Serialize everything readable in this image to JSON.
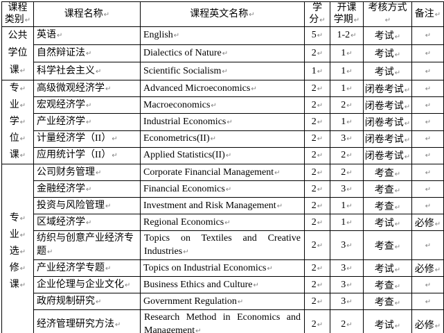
{
  "document": {
    "background": "#ffffff",
    "text_color": "#000000",
    "border_color": "#000000",
    "mark_color": "#808080"
  },
  "icons": {
    "paragraph_mark": "↵"
  },
  "table": {
    "headers": {
      "category_line1": "课程",
      "category_line2": "类别",
      "name": "课程名称",
      "name_en": "课程英文名称",
      "credits_line1": "学",
      "credits_line2": "分",
      "term_line1": "开课",
      "term_line2": "学期",
      "exam": "考核方式",
      "note": "备注"
    },
    "sections": [
      {
        "category": "公共学位课",
        "vertical": false,
        "rows": [
          {
            "name": "英语",
            "name_en": "English",
            "credits": "5",
            "term": "1-2",
            "exam": "考试",
            "note": ""
          },
          {
            "name": "自然辩证法",
            "name_en": "Dialectics of Nature",
            "credits": "2",
            "term": "1",
            "exam": "考试",
            "note": ""
          },
          {
            "name": "科学社会主义",
            "name_en": "Scientific Socialism",
            "credits": "1",
            "term": "1",
            "exam": "考试",
            "note": ""
          }
        ]
      },
      {
        "category": "专业学位课",
        "vertical": true,
        "rows": [
          {
            "name": "高级微观经济学",
            "name_en": "Advanced Microeconomics",
            "credits": "2",
            "term": "1",
            "exam": "闭卷考试",
            "note": ""
          },
          {
            "name": "宏观经济学",
            "name_en": "Macroeconomics",
            "credits": "2",
            "term": "2",
            "exam": "闭卷考试",
            "note": ""
          },
          {
            "name": "产业经济学",
            "name_en": "Industrial Economics",
            "credits": "2",
            "term": "1",
            "exam": "闭卷考试",
            "note": ""
          },
          {
            "name": "计量经济学（II）",
            "name_en": "Econometrics(II)",
            "credits": "2",
            "term": "3",
            "exam": "闭卷考试",
            "note": ""
          },
          {
            "name": "应用统计学（II）",
            "name_en": "Applied Statistics(II)",
            "credits": "2",
            "term": "2",
            "exam": "闭卷考试",
            "note": ""
          }
        ]
      },
      {
        "category": "专业选修课",
        "vertical": true,
        "rows": [
          {
            "name": "公司财务管理",
            "name_en": "Corporate Financial Management",
            "credits": "2",
            "term": "2",
            "exam": "考查",
            "note": ""
          },
          {
            "name": "金融经济学",
            "name_en": "Financial Economics",
            "credits": "2",
            "term": "3",
            "exam": "考查",
            "note": ""
          },
          {
            "name": "投资与风险管理",
            "name_en": "Investment and Risk Management",
            "credits": "2",
            "term": "1",
            "exam": "考查",
            "note": ""
          },
          {
            "name": "区域经济学",
            "name_en": "Regional Economics",
            "credits": "2",
            "term": "1",
            "exam": "考试",
            "note": "必修"
          },
          {
            "name": "纺织与创意产业经济专题",
            "name_en": "Topics on Textiles and Creative Industries",
            "credits": "2",
            "term": "3",
            "exam": "考查",
            "note": "",
            "tall": true
          },
          {
            "name": "产业经济学专题",
            "name_en": "Topics on Industrial Economics",
            "credits": "2",
            "term": "3",
            "exam": "考试",
            "note": "必修"
          },
          {
            "name": "企业伦理与企业文化",
            "name_en": "Business Ethics and Culture",
            "credits": "2",
            "term": "3",
            "exam": "考查",
            "note": ""
          },
          {
            "name": "政府规制研究",
            "name_en": "Government Regulation",
            "credits": "2",
            "term": "3",
            "exam": "考查",
            "note": ""
          },
          {
            "name": "经济管理研究方法",
            "name_en": "Research Method in Economics and Management",
            "credits": "2",
            "term": "2",
            "exam": "考试",
            "note": "必修",
            "tall": true
          }
        ]
      }
    ]
  }
}
